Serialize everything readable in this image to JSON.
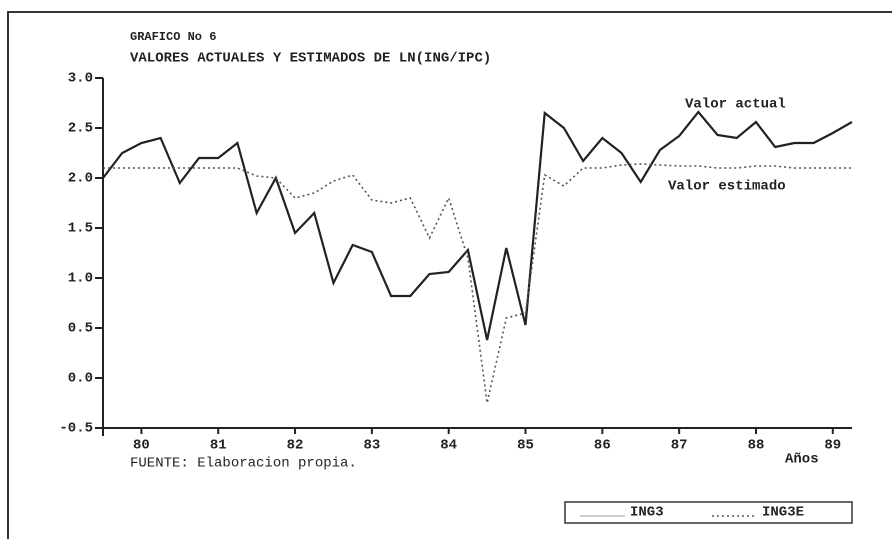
{
  "chart_data": {
    "type": "line",
    "title": "GRAFICO No 6",
    "subtitle": "VALORES ACTUALES Y ESTIMADOS DE LN(ING/IPC)",
    "x_label": "Años",
    "source": "FUENTE: Elaboracion propia.",
    "annotations": [
      "Valor actual",
      "Valor estimado"
    ],
    "x": [
      80,
      80.25,
      80.5,
      80.75,
      81,
      81.25,
      81.5,
      81.75,
      82,
      82.25,
      82.5,
      82.75,
      83,
      83.25,
      83.5,
      83.75,
      84,
      84.25,
      84.5,
      84.75,
      85,
      85.25,
      85.5,
      85.75,
      86,
      86.25,
      86.5,
      86.75,
      87,
      87.25,
      87.5,
      87.75,
      88,
      88.25,
      88.5,
      88.75,
      89,
      89.25,
      89.5,
      89.75
    ],
    "series": [
      {
        "name": "ING3",
        "color": "#222222",
        "style": "solid",
        "values": [
          2.0,
          2.25,
          2.35,
          2.4,
          1.95,
          2.2,
          2.2,
          2.35,
          1.65,
          2.0,
          1.45,
          1.65,
          0.95,
          1.33,
          1.26,
          0.82,
          0.82,
          1.04,
          1.06,
          1.28,
          0.38,
          1.3,
          0.53,
          2.65,
          2.5,
          2.17,
          2.4,
          2.25,
          1.96,
          2.28,
          2.42,
          2.66,
          2.43,
          2.4,
          2.56,
          2.31,
          2.35,
          2.35,
          2.45,
          2.56
        ]
      },
      {
        "name": "ING3E",
        "color": "#555555",
        "style": "dotted",
        "values": [
          2.1,
          2.1,
          2.1,
          2.1,
          2.1,
          2.1,
          2.1,
          2.1,
          2.02,
          2.0,
          1.8,
          1.85,
          1.97,
          2.03,
          1.78,
          1.75,
          1.8,
          1.4,
          1.8,
          1.2,
          -0.25,
          0.6,
          0.65,
          2.03,
          1.92,
          2.1,
          2.1,
          2.13,
          2.14,
          2.13,
          2.12,
          2.12,
          2.1,
          2.1,
          2.12,
          2.12,
          2.1,
          2.1,
          2.1,
          2.1
        ]
      }
    ],
    "xlim": [
      80,
      89.75
    ],
    "xticks": [
      {
        "value": 80.5,
        "label": "80"
      },
      {
        "value": 81.5,
        "label": "81"
      },
      {
        "value": 82.5,
        "label": "82"
      },
      {
        "value": 83.5,
        "label": "83"
      },
      {
        "value": 84.5,
        "label": "84"
      },
      {
        "value": 85.5,
        "label": "85"
      },
      {
        "value": 86.5,
        "label": "86"
      },
      {
        "value": 87.5,
        "label": "87"
      },
      {
        "value": 88.5,
        "label": "88"
      },
      {
        "value": 89.5,
        "label": "89"
      }
    ],
    "ylim": [
      -0.5,
      3.0
    ],
    "yticks": [
      {
        "value": -0.5,
        "label": "-0.5"
      },
      {
        "value": 0,
        "label": "0.0"
      },
      {
        "value": 0.5,
        "label": "0.5"
      },
      {
        "value": 1,
        "label": "1.0"
      },
      {
        "value": 1.5,
        "label": "1.5"
      },
      {
        "value": 2,
        "label": "2.0"
      },
      {
        "value": 2.5,
        "label": "2.5"
      },
      {
        "value": 3,
        "label": "3.0"
      }
    ],
    "grid": false
  }
}
